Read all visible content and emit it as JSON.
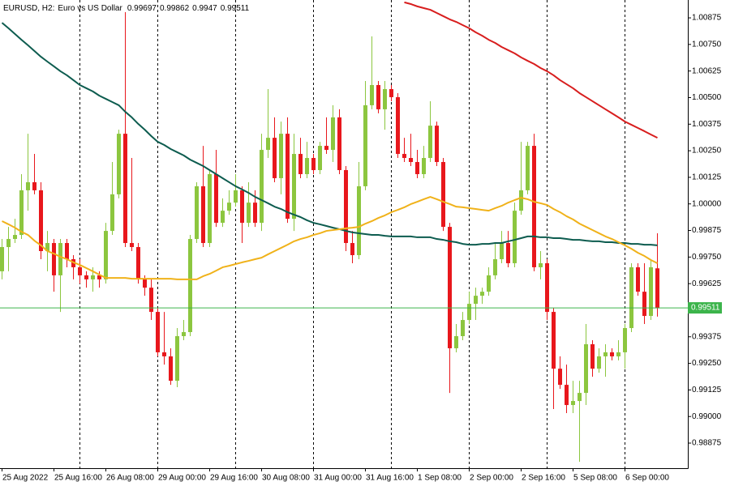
{
  "chart_data": {
    "type": "candlestick",
    "symbol": "EURUSD, H2:",
    "description": "Euro vs US Dollar",
    "categories": [
      "25 Aug 2022",
      null,
      null,
      null,
      null,
      null,
      null,
      null,
      "25 Aug 16:00",
      null,
      null,
      null,
      null,
      null,
      null,
      null,
      "26 Aug 08:00",
      null,
      null,
      null,
      null,
      null,
      null,
      null,
      "29 Aug 00:00",
      null,
      null,
      null,
      null,
      null,
      null,
      null,
      "29 Aug 16:00",
      null,
      null,
      null,
      null,
      null,
      null,
      null,
      "30 Aug 08:00",
      null,
      null,
      null,
      null,
      null,
      null,
      null,
      "31 Aug 00:00",
      null,
      null,
      null,
      null,
      null,
      null,
      null,
      "31 Aug 16:00",
      null,
      null,
      null,
      null,
      null,
      null,
      null,
      "1 Sep 08:00",
      null,
      null,
      null,
      null,
      null,
      null,
      null,
      "2 Sep 00:00",
      null,
      null,
      null,
      null,
      null,
      null,
      null,
      "2 Sep 16:00",
      null,
      null,
      null,
      null,
      null,
      null,
      null,
      "5 Sep 08:00",
      null,
      null,
      null,
      null,
      null,
      null,
      null,
      "6 Sep 00:00",
      null,
      null,
      null,
      null,
      null
    ],
    "open": [
      0.99683,
      0.99797,
      0.99835,
      0.99854,
      1.00064,
      1.00102,
      1.00064,
      0.99778,
      0.99816,
      0.99664,
      0.99816,
      0.9974,
      0.99702,
      0.99664,
      0.99645,
      0.99664,
      0.99645,
      0.99873,
      1.00045,
      1.0033,
      0.99816,
      0.99797,
      0.99645,
      0.99606,
      0.99492,
      0.99302,
      0.99283,
      0.99168,
      0.99378,
      0.99397,
      0.99835,
      1.00083,
      0.99816,
      1.0014,
      0.99911,
      0.99968,
      1.00006,
      1.00064,
      0.99911,
      1.00006,
      0.99911,
      1.00254,
      1.00311,
      1.00121,
      1.0033,
      0.9993,
      1.00235,
      1.0014,
      1.00216,
      1.00159,
      1.00273,
      1.00254,
      1.00407,
      1.00159,
      0.99816,
      0.99759,
      1.00083,
      1.00464,
      1.00559,
      1.00445,
      1.0054,
      1.00502,
      1.00235,
      1.00216,
      1.00197,
      1.0014,
      1.00216,
      1.00368,
      1.00197,
      0.99892,
      0.99321,
      0.99378,
      0.99454,
      0.9953,
      0.99568,
      0.99587,
      0.99664,
      0.9974,
      0.99816,
      0.99721,
      0.99968,
      1.00064,
      1.00273,
      0.99702,
      0.99721,
      0.99492,
      0.99225,
      0.99149,
      0.99054,
      0.99073,
      0.99111,
      0.9934,
      0.99225,
      0.99283,
      0.99302,
      0.99283,
      0.99302,
      0.99416,
      0.99702,
      0.99587,
      0.99473,
      0.99697
    ],
    "high": [
      0.99835,
      0.99892,
      0.9993,
      1.0014,
      1.0033,
      1.00235,
      1.00102,
      0.99873,
      0.99835,
      0.99835,
      0.99835,
      0.99759,
      0.9974,
      0.99683,
      0.99702,
      0.99683,
      0.99911,
      1.00197,
      1.00349,
      1.00902,
      1.00216,
      0.99816,
      0.99664,
      0.99645,
      0.99511,
      0.99492,
      0.99321,
      0.99416,
      0.99454,
      0.99854,
      1.00102,
      1.00273,
      1.00159,
      1.00254,
      1.00026,
      1.00064,
      1.0014,
      1.00083,
      1.00102,
      1.00064,
      1.0033,
      1.0054,
      1.00407,
      1.00387,
      1.00407,
      1.0033,
      1.00311,
      1.00292,
      1.00235,
      1.00292,
      1.00407,
      1.00464,
      1.00445,
      1.00178,
      0.99873,
      1.00197,
      1.00578,
      1.00788,
      1.00578,
      1.00578,
      1.00559,
      1.00521,
      1.00311,
      1.0033,
      1.00254,
      1.00273,
      1.00483,
      1.00387,
      1.00216,
      0.99911,
      0.99435,
      0.99492,
      0.99587,
      0.99606,
      0.99606,
      0.99702,
      0.99816,
      0.99873,
      0.99873,
      1.00006,
      1.00292,
      1.00292,
      1.0033,
      0.99778,
      0.9974,
      0.99511,
      0.99283,
      0.99244,
      0.99168,
      0.99168,
      0.99435,
      0.99359,
      0.99321,
      0.9934,
      0.99321,
      0.99359,
      0.99435,
      0.99721,
      0.99721,
      0.99721,
      0.9974,
      0.99862
    ],
    "low": [
      0.99645,
      0.99683,
      0.99816,
      0.99835,
      0.99968,
      1.00045,
      0.9974,
      0.99683,
      0.99587,
      0.99492,
      0.99702,
      0.99645,
      0.99625,
      0.99606,
      0.99587,
      0.99606,
      0.99625,
      0.99854,
      1.00026,
      0.99797,
      0.99778,
      0.99625,
      0.99568,
      0.99454,
      0.99283,
      0.99244,
      0.99149,
      0.99138,
      0.99359,
      0.99378,
      0.99816,
      0.99797,
      0.99797,
      0.99892,
      0.99892,
      0.99949,
      0.99987,
      0.99816,
      0.99892,
      0.99892,
      0.99873,
      1.00216,
      1.00102,
      1.00045,
      0.99911,
      0.99873,
      1.00121,
      1.00121,
      1.0014,
      1.0014,
      1.00235,
      1.00197,
      1.0014,
      0.99778,
      0.99721,
      0.9974,
      1.00064,
      1.00445,
      1.00426,
      1.00349,
      1.00483,
      1.00216,
      1.00197,
      1.00178,
      1.00121,
      1.00121,
      1.00197,
      1.00178,
      0.99873,
      0.99111,
      0.99302,
      0.99359,
      0.99435,
      0.99454,
      0.9953,
      0.99568,
      0.99645,
      0.99721,
      0.99702,
      0.99702,
      0.99949,
      1.00045,
      0.99683,
      0.99645,
      0.99454,
      0.99035,
      0.9913,
      0.99016,
      0.99016,
      0.98787,
      0.99054,
      0.99187,
      0.99206,
      0.99187,
      0.99264,
      0.99264,
      0.99225,
      0.99397,
      0.99568,
      0.99435,
      0.99454,
      0.9947
    ],
    "close": [
      0.99797,
      0.99835,
      0.99854,
      1.00064,
      1.00102,
      1.00064,
      0.99778,
      0.99816,
      0.99664,
      0.99816,
      0.9974,
      0.99702,
      0.99664,
      0.99645,
      0.99664,
      0.99645,
      0.99873,
      1.00045,
      1.0033,
      0.99816,
      0.99797,
      0.99645,
      0.99606,
      0.99492,
      0.99302,
      0.99283,
      0.99168,
      0.99378,
      0.99397,
      0.99835,
      1.00083,
      0.99816,
      1.0014,
      0.99911,
      0.99968,
      1.00006,
      1.00064,
      0.99911,
      1.00006,
      0.99911,
      1.00254,
      1.00311,
      1.00121,
      1.0033,
      0.9993,
      1.00235,
      1.0014,
      1.00216,
      1.00159,
      1.00273,
      1.00254,
      1.00407,
      1.00159,
      0.99816,
      0.99759,
      1.00083,
      1.00464,
      1.00559,
      1.00445,
      1.0054,
      1.00502,
      1.00235,
      1.00216,
      1.00197,
      1.0014,
      1.00216,
      1.00368,
      1.00197,
      0.99892,
      0.99321,
      0.99378,
      0.99454,
      0.9953,
      0.99568,
      0.99587,
      0.99664,
      0.9974,
      0.99816,
      0.99721,
      0.99968,
      1.00064,
      1.00273,
      0.99702,
      0.99721,
      0.99492,
      0.99225,
      0.99149,
      0.99054,
      0.99073,
      0.99111,
      0.9934,
      0.99225,
      0.99283,
      0.99302,
      0.99283,
      0.99302,
      0.99416,
      0.99702,
      0.99587,
      0.99473,
      0.99702,
      0.99511
    ],
    "up_color": "#8cc63f",
    "down_color": "#e8171c",
    "last_price_color": "#3cb44b",
    "lines": [
      {
        "color": "#0d5c4f",
        "values": [
          1.00852,
          1.00826,
          1.00799,
          1.00772,
          1.00746,
          1.00719,
          1.00692,
          1.00669,
          1.00647,
          1.00624,
          1.00605,
          1.00582,
          1.00559,
          1.00544,
          1.00529,
          1.00509,
          1.00494,
          1.00479,
          1.00464,
          1.00433,
          1.00407,
          1.00376,
          1.00349,
          1.00319,
          1.00292,
          1.00277,
          1.00258,
          1.00243,
          1.00228,
          1.00208,
          1.00193,
          1.00178,
          1.00159,
          1.0014,
          1.00121,
          1.00102,
          1.00083,
          1.00068,
          1.00052,
          1.00033,
          1.00018,
          1.00003,
          0.99987,
          0.99976,
          0.99961,
          0.99949,
          0.99938,
          0.99923,
          0.99911,
          0.99904,
          0.99896,
          0.99888,
          0.99881,
          0.99873,
          0.99866,
          0.99862,
          0.99858,
          0.99854,
          0.99854,
          0.9985,
          0.99847,
          0.99847,
          0.99847,
          0.99847,
          0.99843,
          0.99843,
          0.99843,
          0.99835,
          0.99831,
          0.99824,
          0.9982,
          0.99812,
          0.99808,
          0.99808,
          0.99812,
          0.99812,
          0.99816,
          0.99816,
          0.99824,
          0.99831,
          0.99839,
          0.99847,
          0.99847,
          0.99843,
          0.99843,
          0.99839,
          0.99839,
          0.99835,
          0.99831,
          0.99831,
          0.99827,
          0.99824,
          0.99824,
          0.9982,
          0.9982,
          0.99816,
          0.99816,
          0.99812,
          0.99812,
          0.99808,
          0.99808,
          0.99805
        ]
      },
      {
        "color": "#f0b21a",
        "values": [
          0.99919,
          0.99904,
          0.99888,
          0.99869,
          0.99854,
          0.99827,
          0.99805,
          0.99778,
          0.99766,
          0.99751,
          0.9974,
          0.99725,
          0.99713,
          0.99698,
          0.99683,
          0.99667,
          0.99652,
          0.99652,
          0.99652,
          0.99652,
          0.99648,
          0.99648,
          0.99648,
          0.99648,
          0.99648,
          0.99648,
          0.99648,
          0.99645,
          0.99645,
          0.99645,
          0.99645,
          0.9966,
          0.99671,
          0.99686,
          0.99702,
          0.99709,
          0.99717,
          0.99725,
          0.99732,
          0.9974,
          0.99747,
          0.99763,
          0.99778,
          0.99793,
          0.99808,
          0.99824,
          0.99835,
          0.99843,
          0.99854,
          0.99862,
          0.99873,
          0.99877,
          0.99881,
          0.99885,
          0.99888,
          0.99892,
          0.99907,
          0.99919,
          0.99934,
          0.99946,
          0.99961,
          0.99972,
          0.99984,
          0.99999,
          1.0001,
          1.00022,
          1.00033,
          1.00022,
          1.0001,
          0.99999,
          0.99987,
          0.99984,
          0.9998,
          0.99976,
          0.99972,
          0.99968,
          0.9998,
          0.99991,
          1.00006,
          1.00018,
          1.00029,
          1.00022,
          1.0001,
          1.00003,
          0.99995,
          0.99976,
          0.99961,
          0.99942,
          0.99927,
          0.99907,
          0.99892,
          0.99877,
          0.99862,
          0.99847,
          0.99835,
          0.9982,
          0.99805,
          0.99789,
          0.9977,
          0.99755,
          0.99736,
          0.99721
        ]
      },
      {
        "color": "#d81e1e",
        "values": [
          null,
          null,
          null,
          null,
          null,
          null,
          null,
          null,
          null,
          null,
          null,
          null,
          null,
          null,
          null,
          null,
          null,
          null,
          null,
          null,
          null,
          null,
          null,
          null,
          null,
          null,
          null,
          null,
          null,
          null,
          null,
          null,
          null,
          null,
          null,
          null,
          null,
          null,
          null,
          null,
          null,
          null,
          null,
          null,
          null,
          null,
          null,
          null,
          null,
          null,
          null,
          null,
          null,
          null,
          null,
          null,
          null,
          null,
          null,
          null,
          null,
          null,
          1.00948,
          1.0094,
          1.00929,
          1.00921,
          1.00913,
          1.00898,
          1.00883,
          1.00868,
          1.00856,
          1.00841,
          1.00826,
          1.00807,
          1.00791,
          1.00772,
          1.00757,
          1.00738,
          1.00723,
          1.00708,
          1.00689,
          1.00673,
          1.00658,
          1.00639,
          1.00624,
          1.00605,
          1.00582,
          1.00563,
          1.00544,
          1.00521,
          1.00502,
          1.00483,
          1.00464,
          1.00445,
          1.00426,
          1.00407,
          1.00387,
          1.00372,
          1.00357,
          1.00342,
          1.00326,
          1.00311
        ]
      }
    ],
    "ylim": [
      0.98757,
      1.00959
    ],
    "yticks": [
      0.98875,
      {
        "value": 0.99,
        "label": "0.99000"
      },
      0.99125,
      {
        "value": 0.9925,
        "label": "0.99250"
      },
      0.99375,
      0.99625,
      {
        "value": 0.9975,
        "label": "0.99750"
      },
      0.99875,
      {
        "value": 1,
        "label": "1.00000"
      },
      1.00125,
      {
        "value": 1.0025,
        "label": "1.00250"
      },
      1.00375,
      {
        "value": 1.005,
        "label": "1.00500"
      },
      1.00625,
      {
        "value": 1.0075,
        "label": "1.00750"
      },
      1.00875
    ]
  }
}
